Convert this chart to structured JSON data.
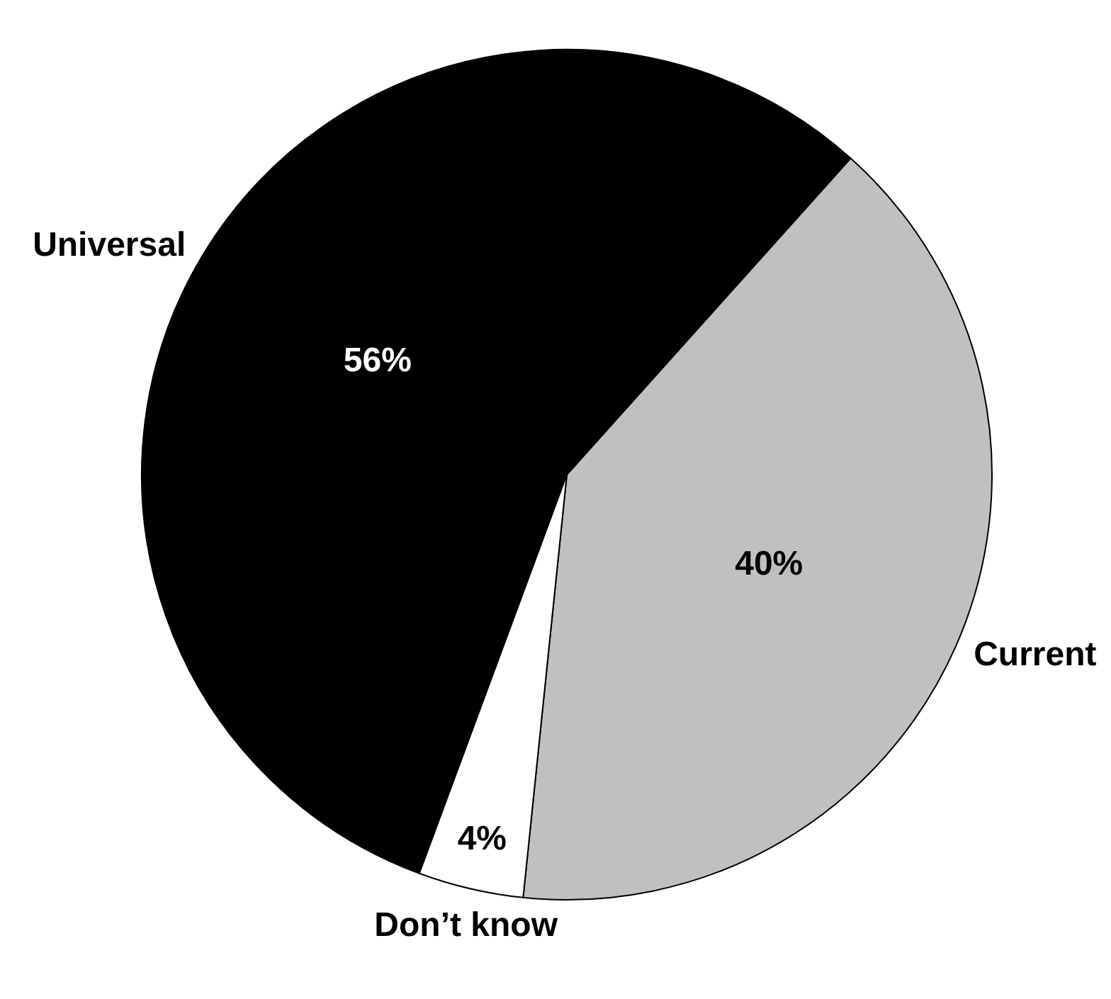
{
  "chart_data": {
    "type": "pie",
    "categories": [
      "Universal",
      "Current",
      "Don’t know"
    ],
    "values": [
      56,
      40,
      4
    ],
    "colors": [
      "#000000",
      "#c0c0c0",
      "#ffffff"
    ],
    "value_labels": [
      "56%",
      "40%",
      "4%"
    ]
  }
}
